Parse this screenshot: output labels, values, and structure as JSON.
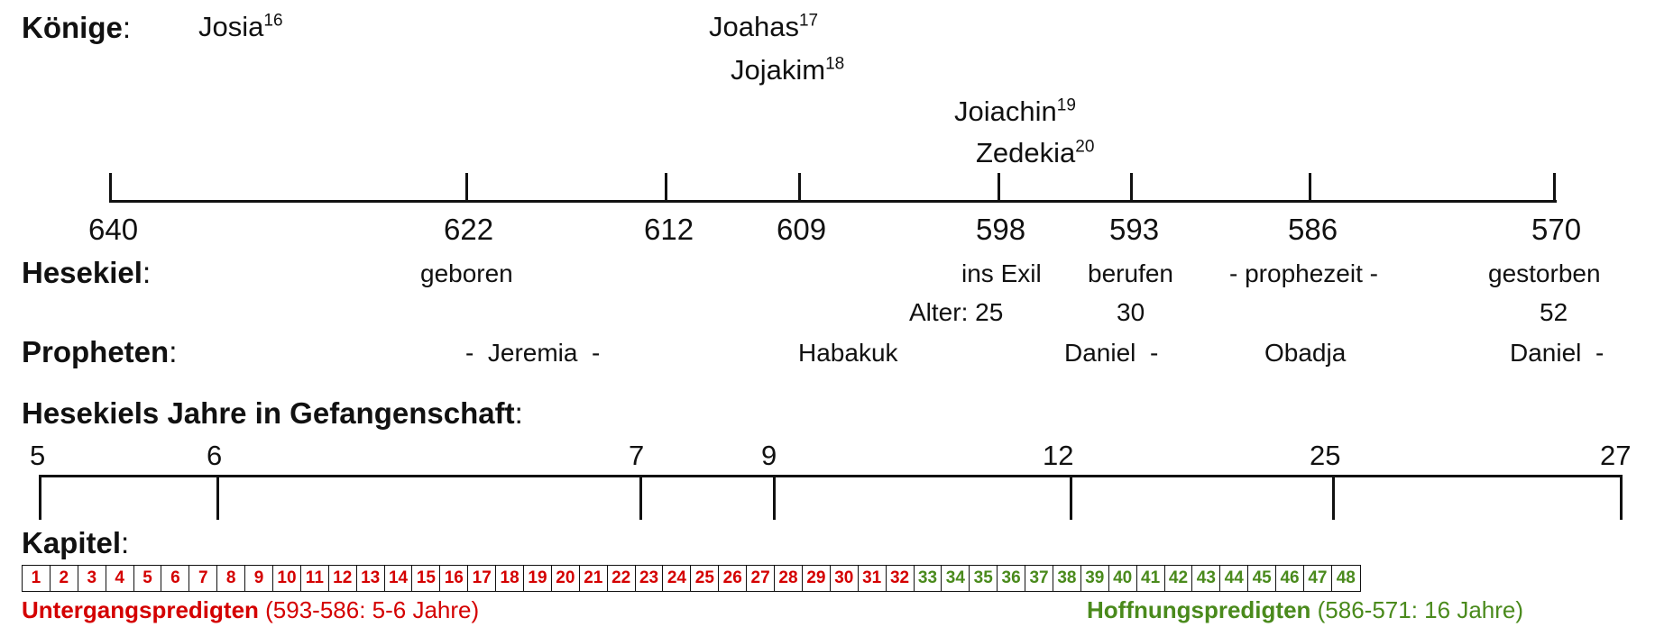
{
  "labels": {
    "kings": "Könige",
    "hesekiel": "Hesekiel",
    "prophets": "Propheten",
    "captivity": "Hesekiels Jahre in Gefangenschaft",
    "chapters": "Kapitel",
    "colon": ":"
  },
  "kings": [
    {
      "name": "Josia",
      "num": "16"
    },
    {
      "name": "Joahas",
      "num": "17"
    },
    {
      "name": "Jojakim",
      "num": "18"
    },
    {
      "name": "Joiachin",
      "num": "19"
    },
    {
      "name": "Zedekia",
      "num": "20"
    }
  ],
  "years": [
    "640",
    "622",
    "612",
    "609",
    "598",
    "593",
    "586",
    "570"
  ],
  "hesekiel_events": [
    "geboren",
    "ins Exil",
    "berufen",
    "- prophezeit -",
    "gestorben"
  ],
  "ages": [
    "Alter: 25",
    "30",
    "52"
  ],
  "prophets": [
    "-  Jeremia  -",
    "Habakuk",
    "Daniel  -",
    "Obadja",
    "Daniel  -"
  ],
  "captivity_years": [
    "5",
    "6",
    "7",
    "9",
    "12",
    "25",
    "27"
  ],
  "chapters": {
    "count": 48,
    "red_until": 32,
    "colors": {
      "red": "#d40000",
      "green": "#4a8a1c"
    }
  },
  "legend": {
    "doom_title": "Untergangspredigten",
    "doom_detail": " (593-586: 5-6 Jahre)",
    "hope_title": "Hoffnungspredigten",
    "hope_detail": " (586-571: 16 Jahre)"
  }
}
